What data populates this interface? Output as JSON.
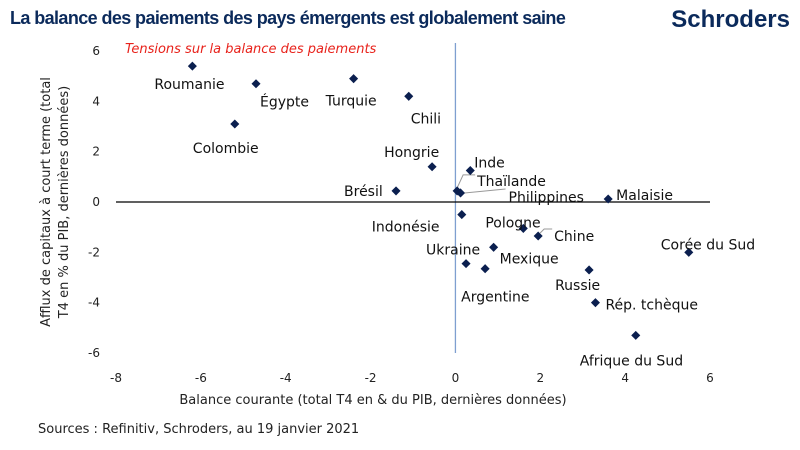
{
  "header": {
    "title": "La balance des paiements des pays émergents est globalement saine",
    "logo": "Schroders"
  },
  "footer": {
    "source": "Sources : Refinitiv, Schroders, au 19 janvier 2021"
  },
  "chart_data": {
    "type": "scatter",
    "annotation": "Tensions sur la balance des paiements",
    "xlabel": "Balance courante (total T4 en & du PIB, dernières données)",
    "ylabel_lines": [
      "Afflux de capitaux à court terme (total",
      "T4 en % du PIB, dernières données)"
    ],
    "xlim": [
      -8,
      6
    ],
    "ylim": [
      -6,
      6
    ],
    "xticks": [
      -8,
      -6,
      -4,
      -2,
      0,
      2,
      4,
      6
    ],
    "yticks": [
      -6,
      -4,
      -2,
      0,
      2,
      4,
      6
    ],
    "marker_color": "#0b1f4f",
    "points": [
      {
        "label": "Roumanie",
        "x": -6.2,
        "y": 5.4
      },
      {
        "label": "Égypte",
        "x": -4.7,
        "y": 4.7
      },
      {
        "label": "Turquie",
        "x": -2.4,
        "y": 4.9
      },
      {
        "label": "Chili",
        "x": -1.1,
        "y": 4.2
      },
      {
        "label": "Colombie",
        "x": -5.2,
        "y": 3.1
      },
      {
        "label": "Hongrie",
        "x": -0.55,
        "y": 1.4
      },
      {
        "label": "Inde",
        "x": 0.35,
        "y": 1.25
      },
      {
        "label": "Thaïlande",
        "x": 0.04,
        "y": 0.44
      },
      {
        "label": "Philippines",
        "x": 0.12,
        "y": 0.36
      },
      {
        "label": "Brésil",
        "x": -1.4,
        "y": 0.44
      },
      {
        "label": "Malaisie",
        "x": 3.6,
        "y": 0.12
      },
      {
        "label": "Indonésie",
        "x": 0.15,
        "y": -0.5
      },
      {
        "label": "Pologne",
        "x": 1.6,
        "y": -1.05
      },
      {
        "label": "Chine",
        "x": 1.95,
        "y": -1.35
      },
      {
        "label": "Ukraine",
        "x": 0.25,
        "y": -2.45
      },
      {
        "label": "Mexique",
        "x": 0.9,
        "y": -1.8
      },
      {
        "label": "Argentine",
        "x": 0.7,
        "y": -2.65
      },
      {
        "label": "Russie",
        "x": 3.15,
        "y": -2.7
      },
      {
        "label": "Rép. tchèque",
        "x": 3.3,
        "y": -4.0
      },
      {
        "label": "Corée du Sud",
        "x": 5.5,
        "y": -2.0
      },
      {
        "label": "Afrique du Sud",
        "x": 4.25,
        "y": -5.3
      }
    ]
  }
}
